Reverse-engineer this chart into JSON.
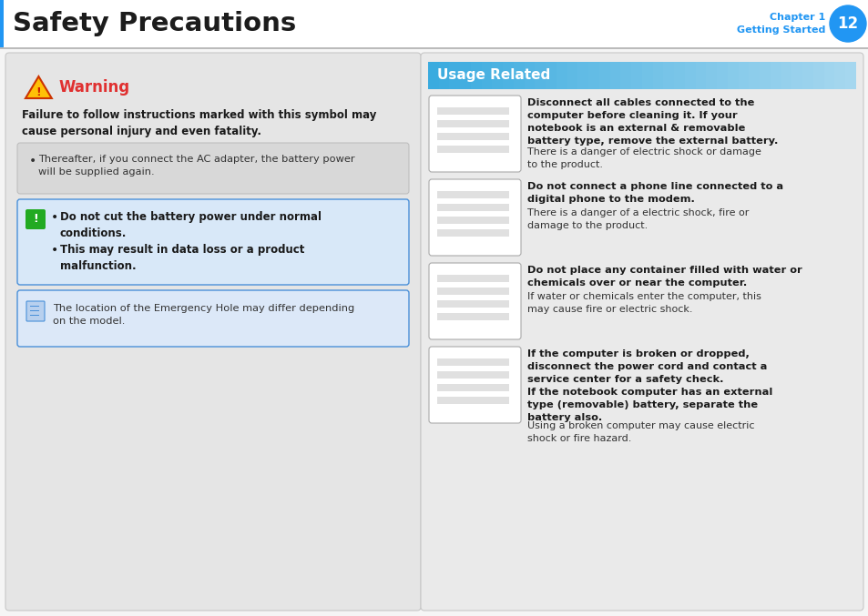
{
  "title": "Safety Precautions",
  "chapter_num": "12",
  "chapter_label1": "Chapter 1",
  "chapter_label2": "Getting Started",
  "header_bg": "#ffffff",
  "header_title_color": "#1c1c1c",
  "chapter_text_color": "#2196F3",
  "chapter_circle_color": "#2196F3",
  "header_left_border_color": "#2196F3",
  "page_bg": "#f5f5f5",
  "divider_color": "#cccccc",
  "left_panel_bg": "#e5e5e5",
  "left_panel_border": "#c8c8c8",
  "right_panel_bg": "#eaeaea",
  "right_panel_border": "#c8c8c8",
  "warning_title": "Warning",
  "warning_color": "#e03030",
  "warning_bold_text": "Failure to follow instructions marked with this symbol may\ncause personal injury and even fatality.",
  "bullet_box_bg": "#d8d8d8",
  "bullet_box_border": "#bbbbbb",
  "bullet_text": "Thereafter, if you connect the AC adapter, the battery power\nwill be supplied again.",
  "caution_box_bg": "#d8e8f8",
  "caution_box_border": "#4a90d9",
  "caution_icon_bg": "#22aa22",
  "caution_lines": [
    "Do not cut the battery power under normal\nconditions.",
    "This may result in data loss or a product\nmalfunction."
  ],
  "note_box_bg": "#dce8f8",
  "note_box_border": "#4a90d9",
  "note_text": "The location of the Emergency Hole may differ depending\non the model.",
  "usage_header": "Usage Related",
  "usage_header_bg": "#3aabdf",
  "usage_header_text_color": "#ffffff",
  "usage_items": [
    {
      "bold": "Disconnect all cables connected to the\ncomputer before cleaning it. If your\nnotebook is an external & removable\nbattery type, remove the external battery.",
      "normal": "There is a danger of electric shock or damage\nto the product."
    },
    {
      "bold": "Do not connect a phone line connected to a\ndigital phone to the modem.",
      "normal": "There is a danger of a electric shock, fire or\ndamage to the product."
    },
    {
      "bold": "Do not place any container filled with water or\nchemicals over or near the computer.",
      "normal": "If water or chemicals enter the computer, this\nmay cause fire or electric shock."
    },
    {
      "bold": "If the computer is broken or dropped,\ndisconnect the power cord and contact a\nservice center for a safety check.\nIf the notebook computer has an external\ntype (removable) battery, separate the\nbattery also.",
      "normal": "Using a broken computer may cause electric\nshock or fire hazard."
    }
  ]
}
